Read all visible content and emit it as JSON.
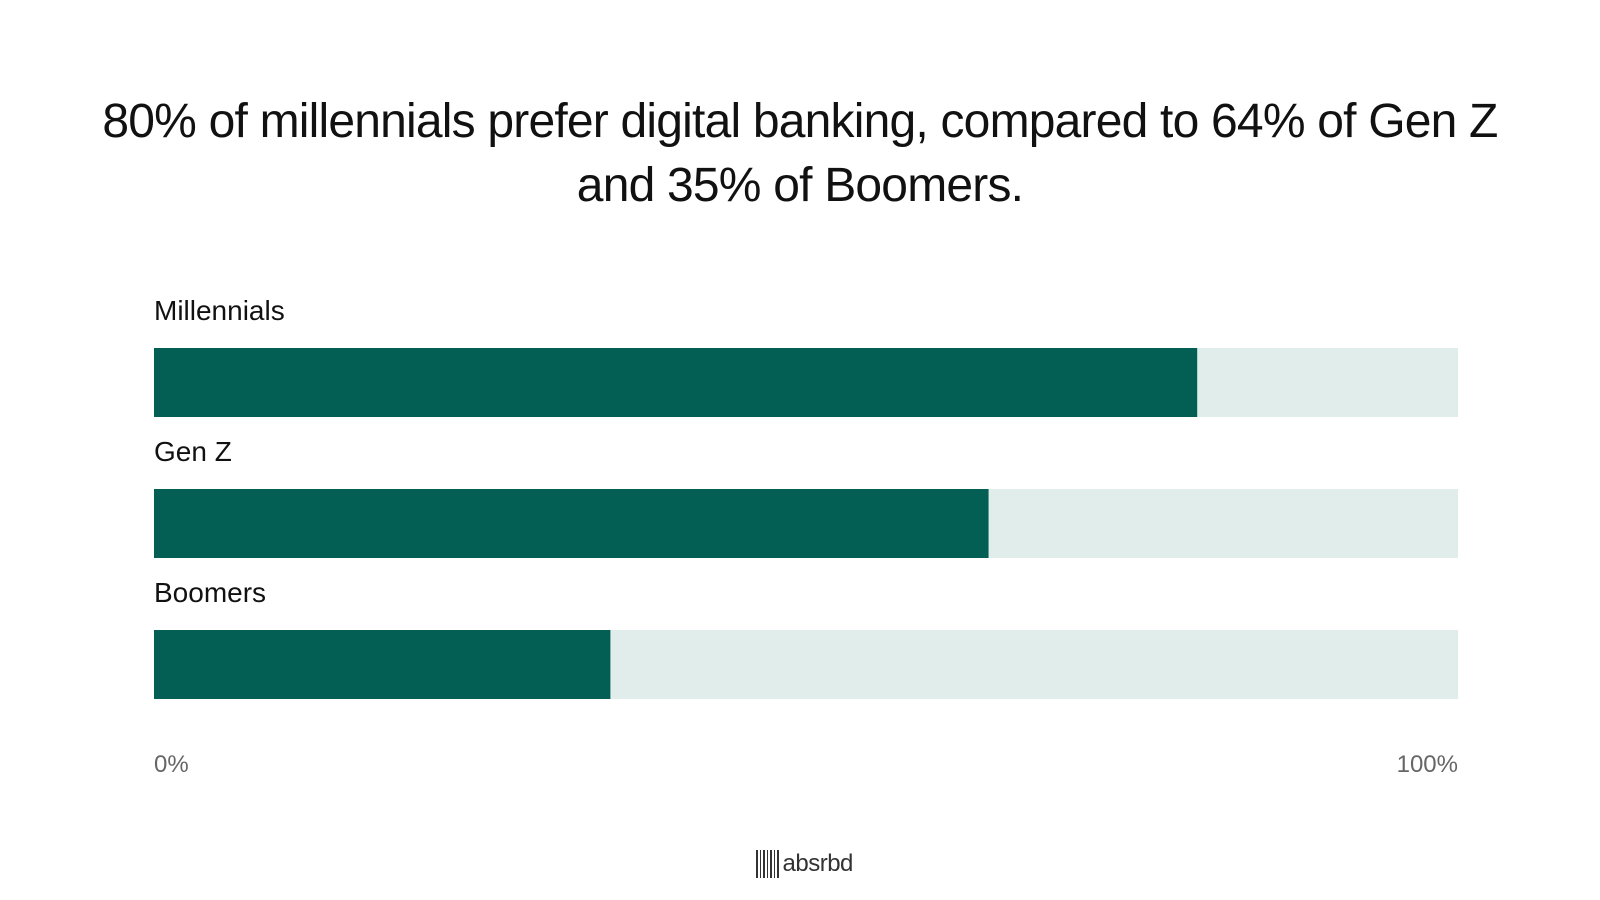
{
  "chart_data": {
    "type": "bar",
    "orientation": "horizontal",
    "title": "80% of millennials prefer digital banking, compared to 64% of Gen Z and 35% of Boomers.",
    "categories": [
      "Millennials",
      "Gen Z",
      "Boomers"
    ],
    "values": [
      80,
      64,
      35
    ],
    "xlim": [
      0,
      100
    ],
    "x_tick_labels": [
      "0%",
      "100%"
    ],
    "grid": false,
    "colors": {
      "bar": "#035E53",
      "track": "#E0EDEA"
    }
  },
  "branding": {
    "logo_text": "absrbd",
    "logo_icon": "barcode-icon"
  }
}
